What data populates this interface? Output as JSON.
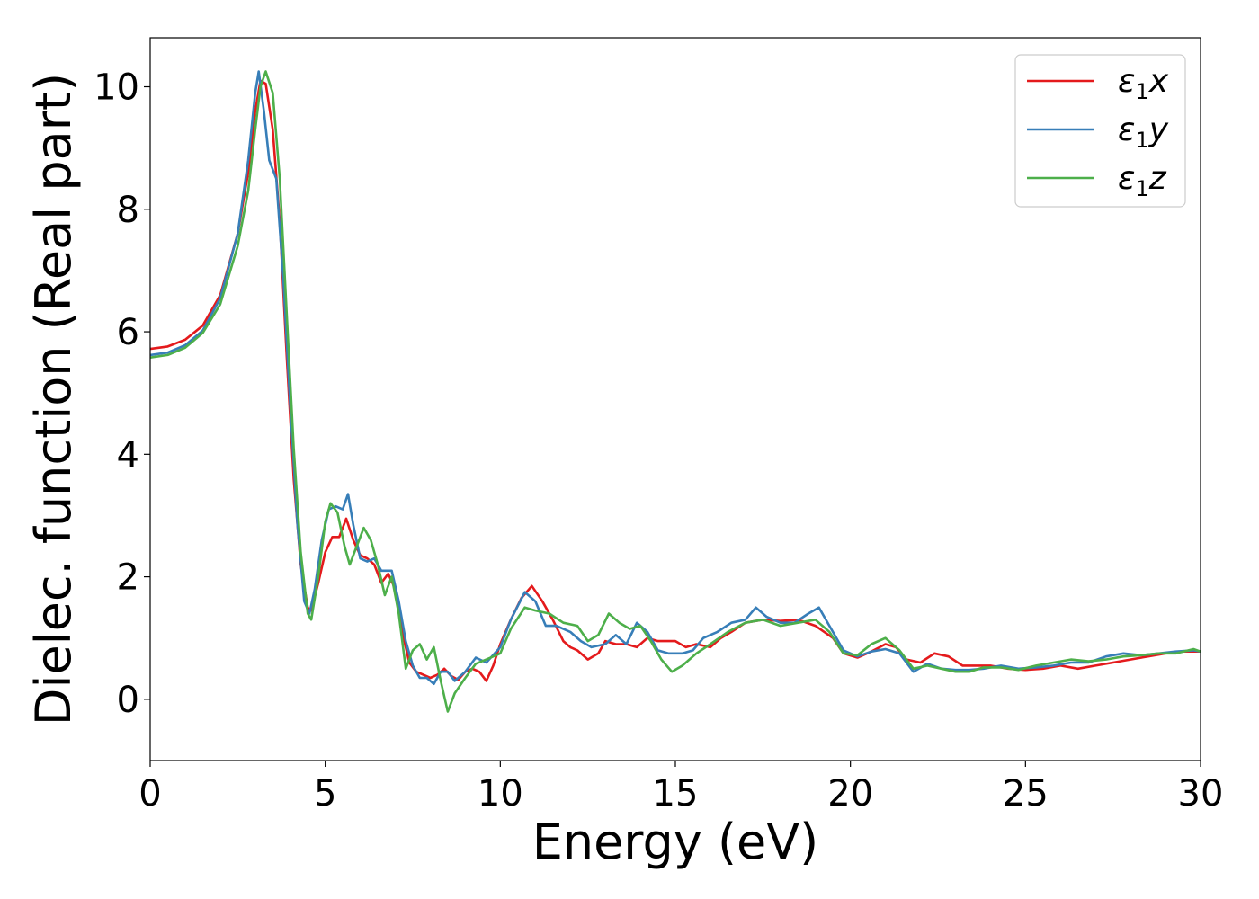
{
  "chart_data": {
    "type": "line",
    "title": "",
    "xlabel": "Energy (eV)",
    "ylabel": "Dielec. function (Real part)",
    "xlim": [
      0,
      30
    ],
    "ylim": [
      -1,
      10.8
    ],
    "xticks": [
      0,
      5,
      10,
      15,
      20,
      25,
      30
    ],
    "yticks": [
      0,
      2,
      4,
      6,
      8,
      10
    ],
    "grid": false,
    "legend_position": "top-right",
    "series": [
      {
        "name": "ε₁x",
        "legend_main": "ε",
        "legend_sub": "1",
        "legend_var": "x",
        "color": "#e41a1c",
        "points": [
          [
            0,
            5.72
          ],
          [
            0.5,
            5.76
          ],
          [
            1.0,
            5.87
          ],
          [
            1.5,
            6.1
          ],
          [
            2.0,
            6.6
          ],
          [
            2.5,
            7.6
          ],
          [
            2.8,
            8.6
          ],
          [
            3.0,
            9.6
          ],
          [
            3.15,
            10.1
          ],
          [
            3.3,
            10.05
          ],
          [
            3.5,
            9.3
          ],
          [
            3.7,
            7.8
          ],
          [
            3.9,
            5.6
          ],
          [
            4.1,
            3.6
          ],
          [
            4.3,
            2.2
          ],
          [
            4.5,
            1.5
          ],
          [
            4.6,
            1.45
          ],
          [
            4.8,
            1.9
          ],
          [
            5.0,
            2.4
          ],
          [
            5.2,
            2.65
          ],
          [
            5.4,
            2.65
          ],
          [
            5.6,
            2.95
          ],
          [
            5.8,
            2.6
          ],
          [
            6.0,
            2.35
          ],
          [
            6.2,
            2.3
          ],
          [
            6.4,
            2.2
          ],
          [
            6.6,
            1.9
          ],
          [
            6.8,
            2.05
          ],
          [
            7.0,
            1.8
          ],
          [
            7.2,
            1.1
          ],
          [
            7.4,
            0.6
          ],
          [
            7.6,
            0.45
          ],
          [
            7.8,
            0.4
          ],
          [
            8.0,
            0.35
          ],
          [
            8.2,
            0.4
          ],
          [
            8.4,
            0.5
          ],
          [
            8.6,
            0.38
          ],
          [
            8.8,
            0.32
          ],
          [
            9.0,
            0.45
          ],
          [
            9.2,
            0.5
          ],
          [
            9.4,
            0.45
          ],
          [
            9.6,
            0.3
          ],
          [
            9.8,
            0.55
          ],
          [
            10.0,
            0.9
          ],
          [
            10.3,
            1.3
          ],
          [
            10.6,
            1.65
          ],
          [
            10.9,
            1.85
          ],
          [
            11.2,
            1.6
          ],
          [
            11.5,
            1.3
          ],
          [
            11.8,
            0.95
          ],
          [
            12.0,
            0.85
          ],
          [
            12.2,
            0.8
          ],
          [
            12.5,
            0.65
          ],
          [
            12.8,
            0.75
          ],
          [
            13.0,
            0.95
          ],
          [
            13.3,
            0.9
          ],
          [
            13.6,
            0.9
          ],
          [
            13.9,
            0.85
          ],
          [
            14.2,
            1.0
          ],
          [
            14.5,
            0.95
          ],
          [
            14.8,
            0.95
          ],
          [
            15.0,
            0.95
          ],
          [
            15.3,
            0.85
          ],
          [
            15.6,
            0.9
          ],
          [
            16.0,
            0.85
          ],
          [
            16.3,
            1.0
          ],
          [
            16.6,
            1.1
          ],
          [
            17.0,
            1.25
          ],
          [
            17.5,
            1.3
          ],
          [
            18.0,
            1.28
          ],
          [
            18.5,
            1.3
          ],
          [
            19.0,
            1.2
          ],
          [
            19.5,
            1.0
          ],
          [
            19.8,
            0.75
          ],
          [
            20.2,
            0.68
          ],
          [
            20.6,
            0.78
          ],
          [
            21.0,
            0.9
          ],
          [
            21.3,
            0.85
          ],
          [
            21.6,
            0.65
          ],
          [
            22.0,
            0.6
          ],
          [
            22.4,
            0.75
          ],
          [
            22.8,
            0.7
          ],
          [
            23.2,
            0.55
          ],
          [
            23.6,
            0.55
          ],
          [
            24.0,
            0.55
          ],
          [
            24.5,
            0.5
          ],
          [
            25.0,
            0.48
          ],
          [
            25.5,
            0.5
          ],
          [
            26.0,
            0.55
          ],
          [
            26.5,
            0.5
          ],
          [
            27.0,
            0.55
          ],
          [
            27.5,
            0.6
          ],
          [
            28.0,
            0.65
          ],
          [
            28.5,
            0.7
          ],
          [
            29.0,
            0.75
          ],
          [
            29.5,
            0.78
          ],
          [
            30.0,
            0.78
          ]
        ]
      },
      {
        "name": "ε₁y",
        "legend_main": "ε",
        "legend_sub": "1",
        "legend_var": "y",
        "color": "#377eb8",
        "points": [
          [
            0,
            5.62
          ],
          [
            0.5,
            5.66
          ],
          [
            1.0,
            5.78
          ],
          [
            1.5,
            6.02
          ],
          [
            2.0,
            6.55
          ],
          [
            2.5,
            7.6
          ],
          [
            2.8,
            8.8
          ],
          [
            3.0,
            9.9
          ],
          [
            3.1,
            10.25
          ],
          [
            3.25,
            9.6
          ],
          [
            3.4,
            8.8
          ],
          [
            3.6,
            8.5
          ],
          [
            3.8,
            6.9
          ],
          [
            4.0,
            4.8
          ],
          [
            4.2,
            2.9
          ],
          [
            4.4,
            1.6
          ],
          [
            4.55,
            1.4
          ],
          [
            4.7,
            1.8
          ],
          [
            4.9,
            2.6
          ],
          [
            5.1,
            3.1
          ],
          [
            5.3,
            3.15
          ],
          [
            5.5,
            3.1
          ],
          [
            5.65,
            3.35
          ],
          [
            5.8,
            2.85
          ],
          [
            6.0,
            2.3
          ],
          [
            6.2,
            2.25
          ],
          [
            6.4,
            2.3
          ],
          [
            6.6,
            2.1
          ],
          [
            6.9,
            2.1
          ],
          [
            7.1,
            1.6
          ],
          [
            7.3,
            0.95
          ],
          [
            7.5,
            0.55
          ],
          [
            7.7,
            0.35
          ],
          [
            7.9,
            0.35
          ],
          [
            8.1,
            0.25
          ],
          [
            8.3,
            0.45
          ],
          [
            8.5,
            0.45
          ],
          [
            8.7,
            0.3
          ],
          [
            9.0,
            0.45
          ],
          [
            9.3,
            0.68
          ],
          [
            9.6,
            0.6
          ],
          [
            10.0,
            0.85
          ],
          [
            10.3,
            1.3
          ],
          [
            10.7,
            1.75
          ],
          [
            11.0,
            1.6
          ],
          [
            11.3,
            1.2
          ],
          [
            11.6,
            1.2
          ],
          [
            12.0,
            1.1
          ],
          [
            12.3,
            0.95
          ],
          [
            12.6,
            0.85
          ],
          [
            13.0,
            0.9
          ],
          [
            13.3,
            1.05
          ],
          [
            13.6,
            0.9
          ],
          [
            13.9,
            1.25
          ],
          [
            14.2,
            1.1
          ],
          [
            14.5,
            0.8
          ],
          [
            14.8,
            0.75
          ],
          [
            15.2,
            0.75
          ],
          [
            15.5,
            0.8
          ],
          [
            15.8,
            1.0
          ],
          [
            16.2,
            1.1
          ],
          [
            16.6,
            1.25
          ],
          [
            17.0,
            1.3
          ],
          [
            17.3,
            1.5
          ],
          [
            17.6,
            1.35
          ],
          [
            18.0,
            1.25
          ],
          [
            18.4,
            1.25
          ],
          [
            18.8,
            1.4
          ],
          [
            19.1,
            1.5
          ],
          [
            19.4,
            1.2
          ],
          [
            19.8,
            0.8
          ],
          [
            20.2,
            0.7
          ],
          [
            20.6,
            0.78
          ],
          [
            21.0,
            0.82
          ],
          [
            21.4,
            0.75
          ],
          [
            21.8,
            0.45
          ],
          [
            22.2,
            0.58
          ],
          [
            22.6,
            0.5
          ],
          [
            23.0,
            0.48
          ],
          [
            23.4,
            0.48
          ],
          [
            23.8,
            0.5
          ],
          [
            24.3,
            0.55
          ],
          [
            24.8,
            0.5
          ],
          [
            25.3,
            0.52
          ],
          [
            25.8,
            0.55
          ],
          [
            26.3,
            0.6
          ],
          [
            26.8,
            0.6
          ],
          [
            27.3,
            0.7
          ],
          [
            27.8,
            0.75
          ],
          [
            28.3,
            0.72
          ],
          [
            28.8,
            0.75
          ],
          [
            29.3,
            0.78
          ],
          [
            29.8,
            0.8
          ],
          [
            30.0,
            0.78
          ]
        ]
      },
      {
        "name": "ε₁z",
        "legend_main": "ε",
        "legend_sub": "1",
        "legend_var": "z",
        "color": "#4daf4a",
        "points": [
          [
            0,
            5.58
          ],
          [
            0.5,
            5.62
          ],
          [
            1.0,
            5.74
          ],
          [
            1.5,
            5.98
          ],
          [
            2.0,
            6.45
          ],
          [
            2.5,
            7.4
          ],
          [
            2.8,
            8.3
          ],
          [
            3.0,
            9.3
          ],
          [
            3.15,
            10.0
          ],
          [
            3.3,
            10.25
          ],
          [
            3.5,
            9.9
          ],
          [
            3.7,
            8.5
          ],
          [
            3.9,
            6.3
          ],
          [
            4.1,
            4.1
          ],
          [
            4.3,
            2.4
          ],
          [
            4.5,
            1.4
          ],
          [
            4.6,
            1.3
          ],
          [
            4.8,
            2.0
          ],
          [
            5.0,
            2.9
          ],
          [
            5.15,
            3.2
          ],
          [
            5.35,
            3.05
          ],
          [
            5.55,
            2.5
          ],
          [
            5.7,
            2.2
          ],
          [
            5.9,
            2.5
          ],
          [
            6.1,
            2.8
          ],
          [
            6.3,
            2.6
          ],
          [
            6.5,
            2.2
          ],
          [
            6.7,
            1.7
          ],
          [
            6.9,
            2.0
          ],
          [
            7.1,
            1.4
          ],
          [
            7.3,
            0.5
          ],
          [
            7.5,
            0.8
          ],
          [
            7.7,
            0.9
          ],
          [
            7.9,
            0.65
          ],
          [
            8.1,
            0.85
          ],
          [
            8.3,
            0.3
          ],
          [
            8.5,
            -0.2
          ],
          [
            8.7,
            0.1
          ],
          [
            9.0,
            0.35
          ],
          [
            9.3,
            0.58
          ],
          [
            9.6,
            0.65
          ],
          [
            10.0,
            0.75
          ],
          [
            10.3,
            1.15
          ],
          [
            10.7,
            1.5
          ],
          [
            11.0,
            1.45
          ],
          [
            11.4,
            1.4
          ],
          [
            11.8,
            1.25
          ],
          [
            12.2,
            1.2
          ],
          [
            12.5,
            0.95
          ],
          [
            12.8,
            1.05
          ],
          [
            13.1,
            1.4
          ],
          [
            13.4,
            1.25
          ],
          [
            13.7,
            1.15
          ],
          [
            14.0,
            1.2
          ],
          [
            14.3,
            0.95
          ],
          [
            14.6,
            0.65
          ],
          [
            14.9,
            0.45
          ],
          [
            15.2,
            0.55
          ],
          [
            15.6,
            0.75
          ],
          [
            16.0,
            0.9
          ],
          [
            16.5,
            1.1
          ],
          [
            17.0,
            1.25
          ],
          [
            17.5,
            1.3
          ],
          [
            18.0,
            1.2
          ],
          [
            18.5,
            1.25
          ],
          [
            19.0,
            1.3
          ],
          [
            19.4,
            1.1
          ],
          [
            19.8,
            0.75
          ],
          [
            20.2,
            0.72
          ],
          [
            20.6,
            0.9
          ],
          [
            21.0,
            1.0
          ],
          [
            21.4,
            0.8
          ],
          [
            21.8,
            0.5
          ],
          [
            22.2,
            0.55
          ],
          [
            22.6,
            0.5
          ],
          [
            23.0,
            0.45
          ],
          [
            23.4,
            0.45
          ],
          [
            23.8,
            0.52
          ],
          [
            24.3,
            0.52
          ],
          [
            24.8,
            0.48
          ],
          [
            25.3,
            0.55
          ],
          [
            25.8,
            0.6
          ],
          [
            26.3,
            0.65
          ],
          [
            26.8,
            0.62
          ],
          [
            27.3,
            0.65
          ],
          [
            27.8,
            0.7
          ],
          [
            28.3,
            0.72
          ],
          [
            28.8,
            0.75
          ],
          [
            29.3,
            0.75
          ],
          [
            29.8,
            0.82
          ],
          [
            30.0,
            0.78
          ]
        ]
      }
    ]
  }
}
